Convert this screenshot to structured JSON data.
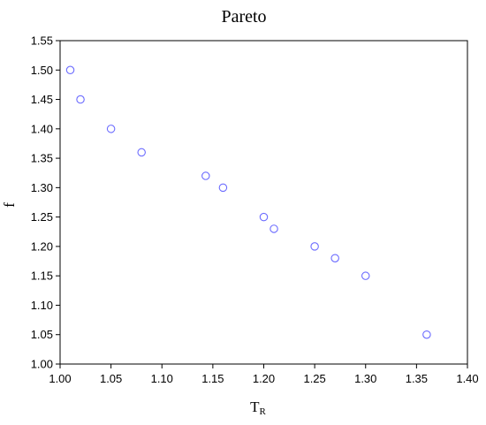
{
  "chart_data": {
    "type": "scatter",
    "title": "Pareto",
    "xlabel": "T",
    "xlabel_subscript": "R",
    "ylabel": "f",
    "xlim": [
      1.0,
      1.4
    ],
    "ylim": [
      1.0,
      1.55
    ],
    "xticks": [
      "1.00",
      "1.05",
      "1.10",
      "1.15",
      "1.20",
      "1.25",
      "1.30",
      "1.35",
      "1.40"
    ],
    "yticks": [
      "1.00",
      "1.05",
      "1.10",
      "1.15",
      "1.20",
      "1.25",
      "1.30",
      "1.35",
      "1.40",
      "1.45",
      "1.50",
      "1.55"
    ],
    "grid": false,
    "marker": "open-circle",
    "marker_color": "#6b6bff",
    "series": [
      {
        "x": [
          1.01,
          1.02,
          1.05,
          1.08,
          1.143,
          1.16,
          1.2,
          1.21,
          1.25,
          1.27,
          1.3,
          1.36
        ],
        "y": [
          1.5,
          1.45,
          1.4,
          1.36,
          1.32,
          1.3,
          1.25,
          1.23,
          1.2,
          1.18,
          1.15,
          1.05
        ]
      }
    ]
  }
}
